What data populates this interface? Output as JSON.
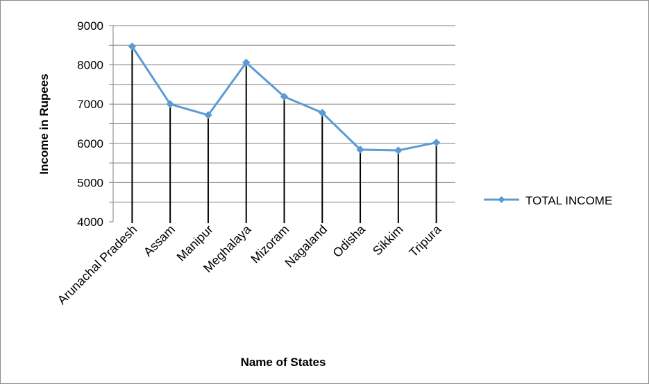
{
  "chart_data": {
    "type": "line",
    "categories": [
      "Arunachal Pradesh",
      "Assam",
      "Manipur",
      "Meghalaya",
      "Mizoram",
      "Nagaland",
      "Odisha",
      "Sikkim",
      "Tripura"
    ],
    "series": [
      {
        "name": "TOTAL INCOME",
        "values": [
          8470,
          7000,
          6720,
          8060,
          7190,
          6780,
          5840,
          5820,
          6020
        ]
      }
    ],
    "xlabel": "Name of States",
    "ylabel": "Income in Rupees",
    "ylim": [
      4000,
      9000
    ],
    "yticks": [
      4000,
      5000,
      6000,
      7000,
      8000,
      9000
    ],
    "grid": true,
    "drop_lines": true,
    "legend": "right",
    "color": "#5b9bd5"
  }
}
